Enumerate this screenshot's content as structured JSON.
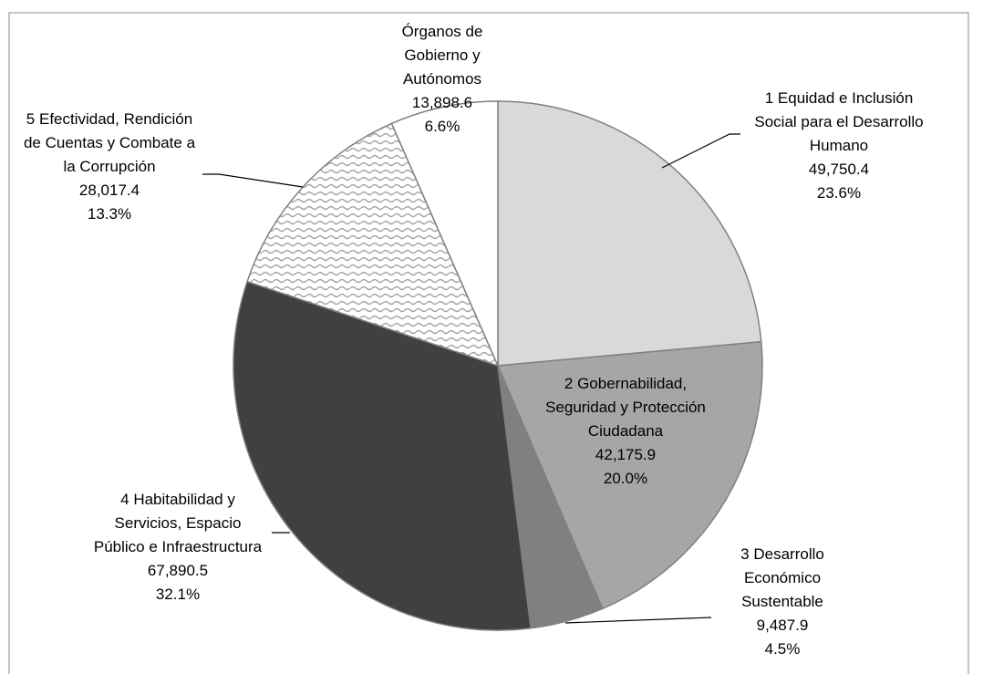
{
  "chart_data": {
    "type": "pie",
    "categories": [
      "1 Equidad e Inclusión Social para el Desarrollo Humano",
      "2 Gobernabilidad, Seguridad y Protección Ciudadana",
      "3 Desarrollo Económico Sustentable",
      "4 Habitabilidad y Servicios, Espacio Público e Infraestructura",
      "5 Efectividad, Rendición de Cuentas y Combate a la Corrupción",
      "Órganos de Gobierno y Autónomos"
    ],
    "values": [
      49750.4,
      42175.9,
      9487.9,
      67890.5,
      28017.4,
      13898.6
    ],
    "value_labels": [
      "49,750.4",
      "42,175.9",
      "9,487.9",
      "67,890.5",
      "28,017.4",
      "13,898.6"
    ],
    "percents": [
      23.6,
      20.0,
      4.5,
      32.1,
      13.3,
      6.6
    ],
    "percent_labels": [
      "23.6%",
      "20.0%",
      "4.5%",
      "32.1%",
      "13.3%",
      "6.6%"
    ],
    "colors": [
      "#d9d9d9",
      "#a6a6a6",
      "#808080",
      "#404040",
      "#ffffff",
      "#ffffff"
    ],
    "hatch": [
      false,
      false,
      false,
      false,
      true,
      false
    ]
  }
}
